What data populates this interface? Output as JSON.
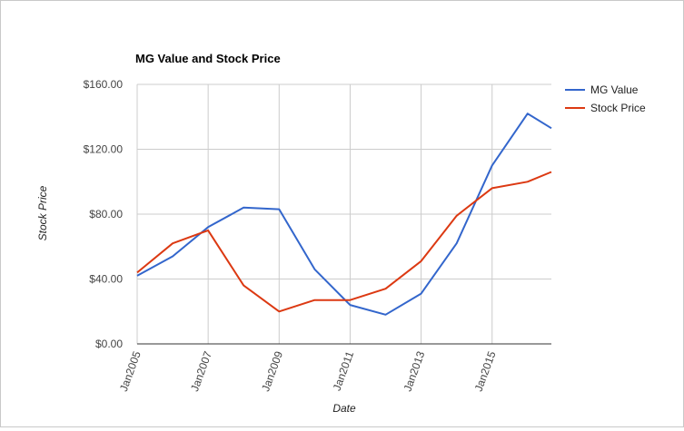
{
  "chart_data": {
    "type": "line",
    "title": "MG Value and Stock Price",
    "xlabel": "Date",
    "ylabel": "Stock Price",
    "x": [
      2005,
      2006,
      2007,
      2008,
      2009,
      2010,
      2011,
      2012,
      2013,
      2014,
      2015,
      2016,
      2016.67
    ],
    "x_ticks": [
      {
        "value": 2005,
        "label": "Jan2005"
      },
      {
        "value": 2007,
        "label": "Jan2007"
      },
      {
        "value": 2009,
        "label": "Jan2009"
      },
      {
        "value": 2011,
        "label": "Jan2011"
      },
      {
        "value": 2013,
        "label": "Jan2013"
      },
      {
        "value": 2015,
        "label": "Jan2015"
      }
    ],
    "xlim": [
      2005,
      2016.67
    ],
    "y_ticks": [
      {
        "value": 0,
        "label": "$0.00"
      },
      {
        "value": 40,
        "label": "$40.00"
      },
      {
        "value": 80,
        "label": "$80.00"
      },
      {
        "value": 120,
        "label": "$120.00"
      },
      {
        "value": 160,
        "label": "$160.00"
      }
    ],
    "ylim": [
      0,
      160
    ],
    "grid": true,
    "legend": "right",
    "series": [
      {
        "name": "MG Value",
        "color": "#3366cc",
        "values": [
          42,
          54,
          72,
          84,
          83,
          46,
          24,
          18,
          31,
          62,
          110,
          142,
          133
        ]
      },
      {
        "name": "Stock Price",
        "color": "#dc3912",
        "values": [
          44,
          62,
          70,
          36,
          20,
          27,
          27,
          34,
          51,
          79,
          96,
          100,
          106
        ]
      }
    ]
  }
}
